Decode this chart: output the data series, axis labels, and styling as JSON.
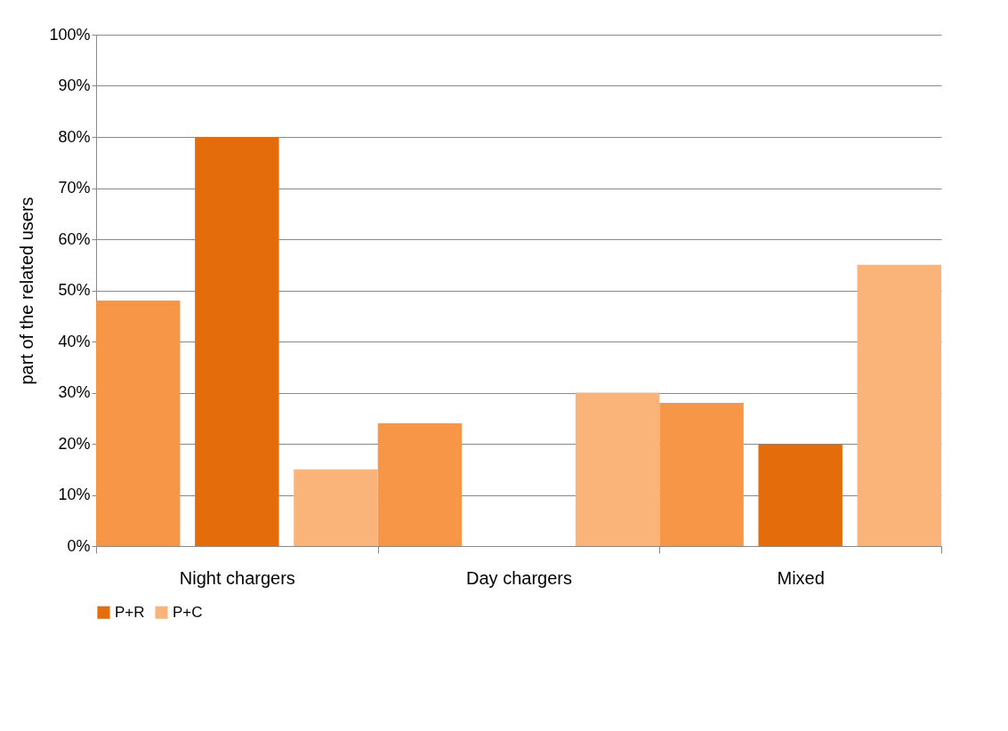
{
  "chart_data": {
    "type": "bar",
    "ylabel": "part of the related users",
    "categories": [
      "Night chargers",
      "Day chargers",
      "Mixed"
    ],
    "series": [
      {
        "color": "#f79646",
        "values": [
          48,
          24,
          28
        ]
      },
      {
        "name": "P+R",
        "color": "#e46c0a",
        "values": [
          80,
          0,
          20
        ]
      },
      {
        "name": "P+C",
        "color": "#fab47a",
        "values": [
          15,
          30,
          55
        ]
      }
    ],
    "ylim": [
      0,
      100
    ],
    "yticks": [
      {
        "value": 0,
        "label": "0%"
      },
      {
        "value": 10,
        "label": "10%"
      },
      {
        "value": 20,
        "label": "20%"
      },
      {
        "value": 30,
        "label": "30%"
      },
      {
        "value": 40,
        "label": "40%"
      },
      {
        "value": 50,
        "label": "50%"
      },
      {
        "value": 60,
        "label": "60%"
      },
      {
        "value": 70,
        "label": "70%"
      },
      {
        "value": 80,
        "label": "80%"
      },
      {
        "value": 90,
        "label": "90%"
      },
      {
        "value": 100,
        "label": "100%"
      }
    ],
    "grid": "y",
    "legend": "bottom"
  }
}
